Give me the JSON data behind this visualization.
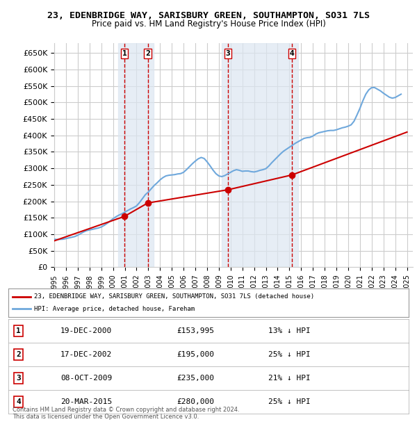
{
  "title": "23, EDENBRIDGE WAY, SARISBURY GREEN, SOUTHAMPTON, SO31 7LS",
  "subtitle": "Price paid vs. HM Land Registry's House Price Index (HPI)",
  "ylabel_ticks": [
    "£0",
    "£50K",
    "£100K",
    "£150K",
    "£200K",
    "£250K",
    "£300K",
    "£350K",
    "£400K",
    "£450K",
    "£500K",
    "£550K",
    "£600K",
    "£650K"
  ],
  "ylim": [
    0,
    680000
  ],
  "yticks": [
    0,
    50000,
    100000,
    150000,
    200000,
    250000,
    300000,
    350000,
    400000,
    450000,
    500000,
    550000,
    600000,
    650000
  ],
  "xmin": 1995.0,
  "xmax": 2025.5,
  "transactions": [
    {
      "label": "1",
      "date": 2000.96,
      "price": 153995,
      "text": "19-DEC-2000",
      "price_str": "£153,995",
      "pct": "13% ↓ HPI"
    },
    {
      "label": "2",
      "date": 2002.96,
      "price": 195000,
      "text": "17-DEC-2002",
      "price_str": "£195,000",
      "pct": "25% ↓ HPI"
    },
    {
      "label": "3",
      "date": 2009.77,
      "price": 235000,
      "text": "08-OCT-2009",
      "price_str": "£235,000",
      "pct": "21% ↓ HPI"
    },
    {
      "label": "4",
      "date": 2015.22,
      "price": 280000,
      "text": "20-MAR-2015",
      "price_str": "£280,000",
      "pct": "25% ↓ HPI"
    }
  ],
  "hpi_line_color": "#6fa8dc",
  "price_line_color": "#cc0000",
  "marker_color": "#cc0000",
  "vline_color": "#cc0000",
  "highlight_color": "#dce6f1",
  "background_color": "#ffffff",
  "grid_color": "#cccccc",
  "hpi_data": {
    "years": [
      1995.0,
      1995.25,
      1995.5,
      1995.75,
      1996.0,
      1996.25,
      1996.5,
      1996.75,
      1997.0,
      1997.25,
      1997.5,
      1997.75,
      1998.0,
      1998.25,
      1998.5,
      1998.75,
      1999.0,
      1999.25,
      1999.5,
      1999.75,
      2000.0,
      2000.25,
      2000.5,
      2000.75,
      2001.0,
      2001.25,
      2001.5,
      2001.75,
      2002.0,
      2002.25,
      2002.5,
      2002.75,
      2003.0,
      2003.25,
      2003.5,
      2003.75,
      2004.0,
      2004.25,
      2004.5,
      2004.75,
      2005.0,
      2005.25,
      2005.5,
      2005.75,
      2006.0,
      2006.25,
      2006.5,
      2006.75,
      2007.0,
      2007.25,
      2007.5,
      2007.75,
      2008.0,
      2008.25,
      2008.5,
      2008.75,
      2009.0,
      2009.25,
      2009.5,
      2009.75,
      2010.0,
      2010.25,
      2010.5,
      2010.75,
      2011.0,
      2011.25,
      2011.5,
      2011.75,
      2012.0,
      2012.25,
      2012.5,
      2012.75,
      2013.0,
      2013.25,
      2013.5,
      2013.75,
      2014.0,
      2014.25,
      2014.5,
      2014.75,
      2015.0,
      2015.25,
      2015.5,
      2015.75,
      2016.0,
      2016.25,
      2016.5,
      2016.75,
      2017.0,
      2017.25,
      2017.5,
      2017.75,
      2018.0,
      2018.25,
      2018.5,
      2018.75,
      2019.0,
      2019.25,
      2019.5,
      2019.75,
      2020.0,
      2020.25,
      2020.5,
      2020.75,
      2021.0,
      2021.25,
      2021.5,
      2021.75,
      2022.0,
      2022.25,
      2022.5,
      2022.75,
      2023.0,
      2023.25,
      2023.5,
      2023.75,
      2024.0,
      2024.25,
      2024.5
    ],
    "values": [
      85000,
      84000,
      84500,
      85000,
      87000,
      89000,
      91000,
      93000,
      97000,
      102000,
      107000,
      111000,
      113000,
      115000,
      117000,
      119000,
      122000,
      127000,
      133000,
      140000,
      147000,
      153000,
      158000,
      162000,
      167000,
      172000,
      177000,
      181000,
      186000,
      196000,
      208000,
      220000,
      228000,
      238000,
      248000,
      256000,
      265000,
      272000,
      277000,
      279000,
      280000,
      281000,
      283000,
      284000,
      288000,
      296000,
      305000,
      314000,
      322000,
      329000,
      333000,
      330000,
      320000,
      308000,
      295000,
      284000,
      277000,
      275000,
      278000,
      283000,
      288000,
      293000,
      296000,
      294000,
      291000,
      292000,
      292000,
      290000,
      289000,
      291000,
      294000,
      296000,
      299000,
      307000,
      317000,
      326000,
      335000,
      344000,
      352000,
      358000,
      364000,
      370000,
      376000,
      381000,
      386000,
      391000,
      393000,
      394000,
      398000,
      404000,
      408000,
      410000,
      412000,
      414000,
      415000,
      415000,
      417000,
      420000,
      423000,
      425000,
      428000,
      432000,
      443000,
      462000,
      482000,
      505000,
      525000,
      538000,
      545000,
      545000,
      540000,
      535000,
      528000,
      522000,
      516000,
      513000,
      515000,
      520000,
      525000
    ]
  },
  "price_paid_data": {
    "years": [
      1995.0,
      2000.96,
      2002.96,
      2009.77,
      2015.22,
      2025.0
    ],
    "values": [
      80000,
      153995,
      195000,
      235000,
      280000,
      410000
    ]
  },
  "legend_line1": "23, EDENBRIDGE WAY, SARISBURY GREEN, SOUTHAMPTON, SO31 7LS (detached house)",
  "legend_line2": "HPI: Average price, detached house, Fareham",
  "footer": "Contains HM Land Registry data © Crown copyright and database right 2024.\nThis data is licensed under the Open Government Licence v3.0.",
  "xticks": [
    1995,
    1996,
    1997,
    1998,
    1999,
    2000,
    2001,
    2002,
    2003,
    2004,
    2005,
    2006,
    2007,
    2008,
    2009,
    2010,
    2011,
    2012,
    2013,
    2014,
    2015,
    2016,
    2017,
    2018,
    2019,
    2020,
    2021,
    2022,
    2023,
    2024,
    2025
  ]
}
